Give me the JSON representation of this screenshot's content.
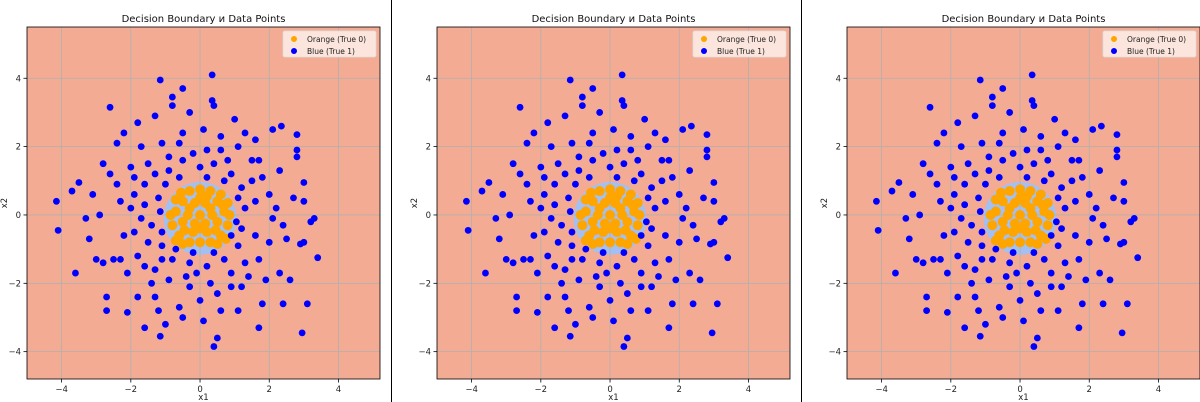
{
  "chart_data": [
    {
      "panel": 1
    },
    {
      "panel": 2
    },
    {
      "panel": 3
    }
  ],
  "shared": {
    "type": "scatter",
    "title": "Decision Boundary и Data Points",
    "xlabel": "x1",
    "ylabel": "x2",
    "xlim": [
      -5.0,
      5.2
    ],
    "ylim": [
      -4.8,
      5.5
    ],
    "xticks": [
      -4,
      -2,
      0,
      2,
      4
    ],
    "yticks": [
      -4,
      -2,
      0,
      2,
      4
    ],
    "tick_labels": {
      "-4": "−4",
      "-2": "−2",
      "0": "0",
      "2": "2",
      "4": "4"
    },
    "grid": true,
    "legend_position": "top-right",
    "colors": {
      "background_region": "#f4ab93",
      "boundary_region": "#a4bff2",
      "orange": "#ffa500",
      "blue": "#0000ff",
      "grid": "#b0b0b0"
    },
    "decision_region": {
      "class": "True 0",
      "center": [
        0,
        -0.1
      ],
      "radius": 1.05
    },
    "series": [
      {
        "name": "Orange (True 0)",
        "color": "#ffa500",
        "points": [
          [
            0,
            0
          ],
          [
            0.3,
            0.2
          ],
          [
            -0.3,
            0.2
          ],
          [
            0.5,
            -0.2
          ],
          [
            -0.5,
            -0.2
          ],
          [
            0.2,
            -0.5
          ],
          [
            -0.2,
            -0.5
          ],
          [
            0,
            0.5
          ],
          [
            0.5,
            0.4
          ],
          [
            -0.5,
            0.4
          ],
          [
            0.7,
            0.1
          ],
          [
            -0.7,
            0.1
          ],
          [
            0.6,
            -0.6
          ],
          [
            -0.6,
            -0.6
          ],
          [
            0,
            -0.8
          ],
          [
            0.3,
            -0.8
          ],
          [
            -0.3,
            -0.8
          ],
          [
            0.3,
            0.7
          ],
          [
            -0.3,
            0.7
          ],
          [
            0,
            0.75
          ],
          [
            0.8,
            -0.3
          ],
          [
            -0.8,
            -0.3
          ],
          [
            0.45,
            -0.45
          ],
          [
            -0.45,
            -0.45
          ],
          [
            0.15,
            0.35
          ],
          [
            -0.15,
            0.35
          ],
          [
            0.15,
            -0.25
          ],
          [
            -0.15,
            -0.25
          ],
          [
            0.75,
            -0.7
          ],
          [
            -0.7,
            0.45
          ],
          [
            0.6,
            0.6
          ],
          [
            -0.55,
            0.65
          ],
          [
            0.85,
            0
          ],
          [
            -0.85,
            0
          ],
          [
            0.5,
            -0.85
          ],
          [
            -0.5,
            -0.85
          ],
          [
            0,
            -0.4
          ],
          [
            0.35,
            0
          ],
          [
            -0.35,
            0
          ],
          [
            0.65,
            0.3
          ],
          [
            0.2,
            0.55
          ],
          [
            -0.7,
            -0.75
          ],
          [
            0.8,
            0.35
          ]
        ]
      },
      {
        "name": "Blue (True 1)",
        "color": "#0000ff",
        "points": [
          [
            -1.2,
            0.5
          ],
          [
            -1.4,
            -0.3
          ],
          [
            -1.1,
            -0.9
          ],
          [
            -1.6,
            0.9
          ],
          [
            -1.8,
            -1.2
          ],
          [
            -2.0,
            0.2
          ],
          [
            -2.2,
            -0.6
          ],
          [
            -1.5,
            1.5
          ],
          [
            -0.9,
            1.3
          ],
          [
            -0.5,
            1.6
          ],
          [
            0.0,
            1.4
          ],
          [
            0.4,
            1.5
          ],
          [
            0.9,
            1.2
          ],
          [
            1.2,
            0.8
          ],
          [
            1.3,
            0.2
          ],
          [
            1.2,
            -0.4
          ],
          [
            1.1,
            -0.9
          ],
          [
            0.7,
            -1.3
          ],
          [
            0.2,
            -1.5
          ],
          [
            -0.3,
            -1.4
          ],
          [
            -0.8,
            -1.3
          ],
          [
            -1.3,
            -1.6
          ],
          [
            -1.7,
            -0.1
          ],
          [
            -2.4,
            0.9
          ],
          [
            -2.5,
            -1.3
          ],
          [
            -2.8,
            -1.4
          ],
          [
            -2.9,
            0.0
          ],
          [
            -3.1,
            0.6
          ],
          [
            -3.2,
            -0.7
          ],
          [
            -2.0,
            1.4
          ],
          [
            -1.7,
            2.0
          ],
          [
            -1.1,
            2.1
          ],
          [
            -0.6,
            2.1
          ],
          [
            0.1,
            2.5
          ],
          [
            0.6,
            2.3
          ],
          [
            1.1,
            2.0
          ],
          [
            1.5,
            1.6
          ],
          [
            1.8,
            1.1
          ],
          [
            2.0,
            0.6
          ],
          [
            2.1,
            -0.1
          ],
          [
            2.0,
            -0.8
          ],
          [
            1.7,
            -1.3
          ],
          [
            1.4,
            -1.8
          ],
          [
            0.9,
            -2.1
          ],
          [
            0.3,
            -2.0
          ],
          [
            -0.3,
            -2.1
          ],
          [
            -0.9,
            -1.9
          ],
          [
            -1.6,
            -1.5
          ],
          [
            -2.1,
            -1.7
          ],
          [
            -1.8,
            -2.4
          ],
          [
            -1.3,
            -2.4
          ],
          [
            -0.6,
            -2.7
          ],
          [
            0.0,
            -2.5
          ],
          [
            0.6,
            -2.8
          ],
          [
            1.2,
            -2.1
          ],
          [
            1.8,
            -2.6
          ],
          [
            2.3,
            -1.7
          ],
          [
            2.6,
            -1.9
          ],
          [
            2.5,
            -0.7
          ],
          [
            2.7,
            0.5
          ],
          [
            2.3,
            1.3
          ],
          [
            2.1,
            2.5
          ],
          [
            1.6,
            2.2
          ],
          [
            1.0,
            2.8
          ],
          [
            0.4,
            3.2
          ],
          [
            -0.3,
            3.0
          ],
          [
            -0.8,
            3.2
          ],
          [
            -1.3,
            2.9
          ],
          [
            -1.8,
            2.7
          ],
          [
            -2.2,
            2.4
          ],
          [
            -2.4,
            2.1
          ],
          [
            -2.8,
            1.5
          ],
          [
            -2.6,
            1.2
          ],
          [
            -3.3,
            -0.1
          ],
          [
            -3.0,
            -1.3
          ],
          [
            -2.7,
            -2.4
          ],
          [
            -2.3,
            -1.3
          ],
          [
            -1.6,
            -3.3
          ],
          [
            -1.0,
            -3.2
          ],
          [
            -0.5,
            -3.0
          ],
          [
            0.1,
            -3.1
          ],
          [
            0.5,
            -3.6
          ],
          [
            1.1,
            -2.8
          ],
          [
            2.4,
            -2.6
          ],
          [
            3.0,
            -0.8
          ],
          [
            3.0,
            0.4
          ],
          [
            2.8,
            1.9
          ],
          [
            2.8,
            1.7
          ],
          [
            3.2,
            -0.2
          ],
          [
            0.6,
            1.9
          ],
          [
            -0.2,
            1.8
          ],
          [
            -1.3,
            1.2
          ],
          [
            -1.9,
            0.6
          ],
          [
            -1.5,
            -0.8
          ],
          [
            1.6,
            0.4
          ],
          [
            1.6,
            -0.6
          ],
          [
            1.5,
            1.0
          ],
          [
            0.9,
            -1.7
          ],
          [
            -0.4,
            -1.8
          ],
          [
            -1.1,
            -1.3
          ],
          [
            -4.15,
            0.4
          ],
          [
            -4.1,
            -0.45
          ],
          [
            -2.6,
            3.15
          ],
          [
            -1.15,
            3.95
          ],
          [
            0.35,
            4.1
          ],
          [
            -0.5,
            3.7
          ],
          [
            -0.8,
            3.45
          ],
          [
            0.35,
            3.35
          ],
          [
            0.4,
            -3.85
          ],
          [
            -1.15,
            -3.55
          ],
          [
            2.95,
            -3.45
          ],
          [
            1.7,
            -3.3
          ],
          [
            3.4,
            -1.25
          ],
          [
            3.3,
            -0.1
          ],
          [
            3.1,
            -2.6
          ],
          [
            -3.6,
            -1.7
          ],
          [
            -2.7,
            -2.8
          ],
          [
            -2.1,
            -2.85
          ],
          [
            2.8,
            2.35
          ],
          [
            2.35,
            2.6
          ],
          [
            -3.5,
            0.95
          ],
          [
            -3.7,
            0.7
          ],
          [
            3.0,
            0.95
          ],
          [
            2.9,
            -0.85
          ],
          [
            -1.0,
            0.9
          ],
          [
            -0.6,
            1.1
          ],
          [
            0.2,
            1.1
          ],
          [
            0.7,
            1.0
          ],
          [
            1.1,
            0.5
          ],
          [
            1.05,
            -0.2
          ],
          [
            0.9,
            -0.6
          ],
          [
            0.4,
            -1.1
          ],
          [
            -0.2,
            -1.1
          ],
          [
            -0.7,
            -1.0
          ],
          [
            -1.1,
            -0.5
          ],
          [
            -1.15,
            0.1
          ],
          [
            -1.6,
            0.3
          ],
          [
            -1.9,
            -0.5
          ],
          [
            1.7,
            1.6
          ],
          [
            0.2,
            1.9
          ],
          [
            -0.9,
            1.7
          ],
          [
            -1.4,
            -2.0
          ],
          [
            0.5,
            -2.3
          ],
          [
            1.3,
            -1.4
          ],
          [
            2.2,
            0.2
          ],
          [
            -2.3,
            0.4
          ],
          [
            1.9,
            -1.9
          ],
          [
            0.8,
            1.6
          ],
          [
            -0.1,
            -1.7
          ],
          [
            -1.9,
            1.1
          ],
          [
            2.4,
            -0.3
          ],
          [
            1.3,
            2.4
          ],
          [
            -0.5,
            2.4
          ],
          [
            -1.2,
            -2.8
          ]
        ]
      }
    ]
  }
}
